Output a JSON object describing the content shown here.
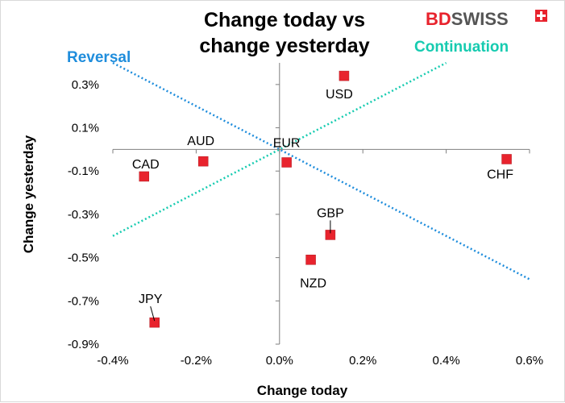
{
  "chart_data": {
    "type": "scatter",
    "title_lines": [
      "Change today vs",
      "change yesterday"
    ],
    "xlabel": "Change today",
    "ylabel": "Change yesterday",
    "xlim": [
      -0.4,
      0.6
    ],
    "ylim": [
      -0.9,
      0.4
    ],
    "x_ticks": [
      -0.4,
      -0.2,
      0.0,
      0.2,
      0.4,
      0.6
    ],
    "x_tick_labels": [
      "-0.4%",
      "-0.2%",
      "0.0%",
      "0.2%",
      "0.4%",
      "0.6%"
    ],
    "y_ticks": [
      0.3,
      0.1,
      -0.1,
      -0.3,
      -0.5,
      -0.7,
      -0.9
    ],
    "y_tick_labels": [
      "0.3%",
      "0.1%",
      "-0.1%",
      "-0.3%",
      "-0.5%",
      "-0.7%",
      "-0.9%"
    ],
    "grid": false,
    "marker_color": "#e8232d",
    "points": [
      {
        "label": "USD",
        "x": 0.155,
        "y": 0.34
      },
      {
        "label": "AUD",
        "x": -0.183,
        "y": -0.055
      },
      {
        "label": "CAD",
        "x": -0.325,
        "y": -0.125
      },
      {
        "label": "EUR",
        "x": 0.017,
        "y": -0.06
      },
      {
        "label": "CHF",
        "x": 0.545,
        "y": -0.045
      },
      {
        "label": "GBP",
        "x": 0.122,
        "y": -0.395
      },
      {
        "label": "NZD",
        "x": 0.075,
        "y": -0.51
      },
      {
        "label": "JPY",
        "x": -0.3,
        "y": -0.8
      }
    ],
    "trendlines": [
      {
        "label": "Reversal",
        "color": "#1f8ddc",
        "from": [
          -0.4,
          0.4
        ],
        "to": [
          0.6,
          -0.6
        ]
      },
      {
        "label": "Continuation",
        "color": "#16cbb0",
        "from": [
          -0.4,
          -0.4
        ],
        "to": [
          0.4,
          0.4
        ]
      }
    ]
  },
  "logo": {
    "text_bd": "BD",
    "text_swiss": "SWISS",
    "color_bd": "#e8232d",
    "color_swiss": "#555555"
  }
}
